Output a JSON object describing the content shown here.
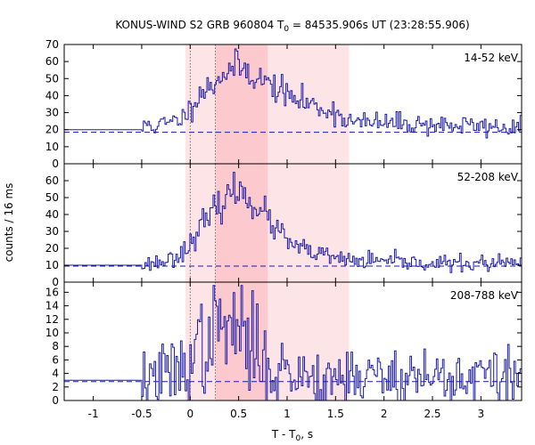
{
  "chart_data": {
    "type": "line",
    "title_prefix": "KONUS-WIND S2 GRB 960804 T",
    "title_sub": "0",
    "title_suffix": " = 84535.906s UT (23:28:55.906)",
    "xlabel_prefix": "T - T",
    "xlabel_sub": "0",
    "xlabel_suffix": ", s",
    "ylabel": "counts / 16 ms",
    "xlim": [
      -1.3,
      3.42
    ],
    "x_ticks": [
      -1,
      -0.5,
      0,
      0.5,
      1,
      1.5,
      2,
      2.5,
      3
    ],
    "x_tick_labels": [
      "-1",
      "-0.5",
      "0",
      "0.5",
      "1",
      "1.5",
      "2",
      "2.5",
      "3"
    ],
    "line_color": "#1a1aa6",
    "band_outer_color": "#fde4e6",
    "band_inner_color": "#fbc9ce",
    "bands": {
      "outer": [
        -0.05,
        1.64
      ],
      "inner": [
        0.26,
        0.8
      ]
    },
    "vlines": [
      0,
      0.26
    ],
    "panels": [
      {
        "label": "14-52 keV",
        "ylim": [
          0,
          70
        ],
        "y_ticks": [
          0,
          10,
          20,
          30,
          40,
          50,
          60,
          70
        ],
        "background": 18.5,
        "pre_burst_level": 20,
        "profile": [
          [
            -0.5,
            20
          ],
          [
            -0.45,
            24
          ],
          [
            -0.4,
            22
          ],
          [
            -0.3,
            23
          ],
          [
            -0.2,
            24
          ],
          [
            -0.1,
            27
          ],
          [
            0.0,
            32
          ],
          [
            0.05,
            40
          ],
          [
            0.1,
            42
          ],
          [
            0.2,
            45
          ],
          [
            0.3,
            52
          ],
          [
            0.4,
            55
          ],
          [
            0.5,
            57
          ],
          [
            0.6,
            54
          ],
          [
            0.7,
            50
          ],
          [
            0.8,
            47
          ],
          [
            0.9,
            44
          ],
          [
            1.0,
            40
          ],
          [
            1.1,
            37
          ],
          [
            1.2,
            36
          ],
          [
            1.3,
            33
          ],
          [
            1.4,
            32
          ],
          [
            1.5,
            30
          ],
          [
            1.6,
            26
          ],
          [
            1.7,
            24
          ],
          [
            2.0,
            24
          ],
          [
            2.5,
            23
          ],
          [
            3.0,
            22
          ],
          [
            3.42,
            21
          ]
        ],
        "noise": 3.2,
        "seed": 11
      },
      {
        "label": "52-208 keV",
        "ylim": [
          0,
          70
        ],
        "y_ticks": [
          0,
          10,
          20,
          30,
          40,
          50,
          60
        ],
        "background": 9.5,
        "pre_burst_level": 10,
        "profile": [
          [
            -0.5,
            10.5
          ],
          [
            -0.3,
            12
          ],
          [
            -0.2,
            14
          ],
          [
            -0.1,
            18
          ],
          [
            0.0,
            22
          ],
          [
            0.05,
            30
          ],
          [
            0.1,
            33
          ],
          [
            0.2,
            38
          ],
          [
            0.3,
            46
          ],
          [
            0.4,
            52
          ],
          [
            0.5,
            54
          ],
          [
            0.6,
            50
          ],
          [
            0.7,
            44
          ],
          [
            0.8,
            37
          ],
          [
            0.9,
            30
          ],
          [
            1.0,
            24
          ],
          [
            1.1,
            20
          ],
          [
            1.2,
            18
          ],
          [
            1.3,
            17
          ],
          [
            1.4,
            15
          ],
          [
            1.5,
            14
          ],
          [
            1.6,
            13
          ],
          [
            2.0,
            12
          ],
          [
            2.5,
            11
          ],
          [
            3.0,
            11
          ],
          [
            3.42,
            11
          ]
        ],
        "noise": 2.6,
        "seed": 23
      },
      {
        "label": "208-788 keV",
        "ylim": [
          0,
          17.5
        ],
        "y_ticks": [
          0,
          2,
          4,
          6,
          8,
          10,
          12,
          14,
          16
        ],
        "background": 2.8,
        "pre_burst_level": 3,
        "profile": [
          [
            -0.5,
            3
          ],
          [
            -0.4,
            3.4
          ],
          [
            -0.2,
            4
          ],
          [
            -0.1,
            4.5
          ],
          [
            0.0,
            6.5
          ],
          [
            0.1,
            8
          ],
          [
            0.2,
            9
          ],
          [
            0.3,
            10.5
          ],
          [
            0.4,
            11
          ],
          [
            0.5,
            10
          ],
          [
            0.6,
            8.5
          ],
          [
            0.7,
            6.5
          ],
          [
            0.8,
            5
          ],
          [
            0.9,
            4.5
          ],
          [
            1.0,
            4
          ],
          [
            1.2,
            3.8
          ],
          [
            1.5,
            3.6
          ],
          [
            2.0,
            3.6
          ],
          [
            2.5,
            3.5
          ],
          [
            3.0,
            3.4
          ],
          [
            3.42,
            3.4
          ]
        ],
        "noise": 2.4,
        "seed": 37
      }
    ]
  }
}
